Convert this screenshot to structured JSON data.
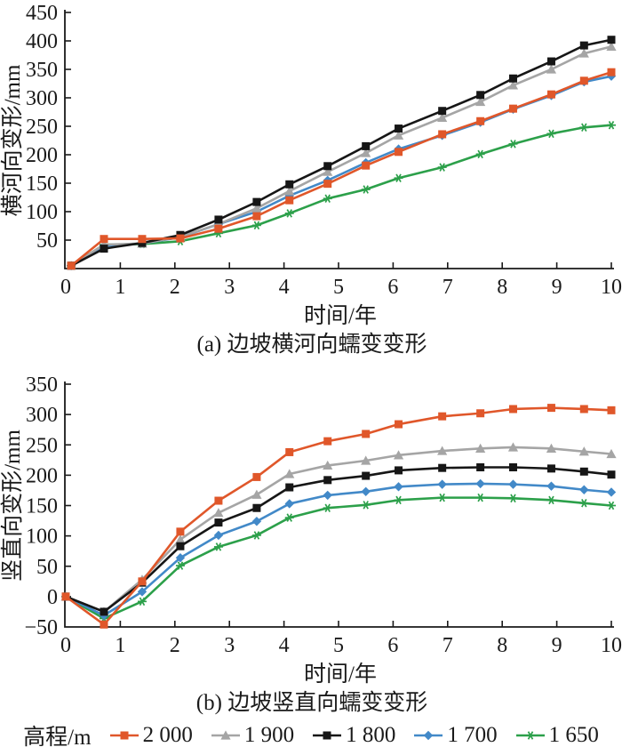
{
  "legend": {
    "title": "高程/m",
    "entries": [
      {
        "label": "2 000",
        "color": "#E0572A",
        "marker": "square"
      },
      {
        "label": "1 900",
        "color": "#A5A5A5",
        "marker": "triangle"
      },
      {
        "label": "1 800",
        "color": "#161616",
        "marker": "square"
      },
      {
        "label": "1 700",
        "color": "#4289C8",
        "marker": "diamond"
      },
      {
        "label": "1 650",
        "color": "#2CA04A",
        "marker": "star"
      }
    ]
  },
  "chart_data": [
    {
      "type": "line",
      "title": "(a) 边坡横河向蠕变变形",
      "xlabel": "时间/年",
      "ylabel": "横河向变形/mm",
      "xlim": [
        0,
        10
      ],
      "ylim": [
        0,
        450
      ],
      "ytick_step": 50,
      "xticks": [
        0,
        1,
        2,
        3,
        4,
        5,
        6,
        7,
        8,
        9,
        10
      ],
      "grid": false,
      "x": [
        0.1,
        0.7,
        1.4,
        2.1,
        2.8,
        3.5,
        4.1,
        4.8,
        5.5,
        6.1,
        6.9,
        7.6,
        8.2,
        8.9,
        9.5,
        10
      ],
      "series": [
        {
          "name": "2 000",
          "color": "#E0572A",
          "marker": "square",
          "values": [
            5,
            52,
            52,
            53,
            70,
            92,
            120,
            149,
            181,
            205,
            236,
            259,
            281,
            306,
            330,
            345
          ]
        },
        {
          "name": "1 900",
          "color": "#A5A5A5",
          "marker": "triangle",
          "values": [
            5,
            42,
            44,
            56,
            78,
            106,
            136,
            170,
            203,
            234,
            265,
            293,
            322,
            350,
            378,
            390
          ]
        },
        {
          "name": "1 800",
          "color": "#161616",
          "marker": "square",
          "values": [
            5,
            35,
            45,
            59,
            86,
            117,
            148,
            180,
            215,
            246,
            277,
            305,
            334,
            364,
            392,
            402
          ]
        },
        {
          "name": "1 700",
          "color": "#4289C8",
          "marker": "diamond",
          "values": [
            5,
            40,
            44,
            55,
            78,
            100,
            128,
            155,
            186,
            210,
            234,
            257,
            280,
            304,
            328,
            338
          ]
        },
        {
          "name": "1 650",
          "color": "#2CA04A",
          "marker": "star",
          "values": [
            5,
            42,
            43,
            48,
            62,
            76,
            97,
            123,
            139,
            159,
            178,
            201,
            219,
            237,
            248,
            252
          ]
        }
      ]
    },
    {
      "type": "line",
      "title": "(b) 边坡竖直向蠕变变形",
      "xlabel": "时间/年",
      "ylabel": "竖直向变形/mm",
      "xlim": [
        0,
        10
      ],
      "ylim": [
        -50,
        350
      ],
      "ytick_step": 50,
      "xticks": [
        0,
        1,
        2,
        3,
        4,
        5,
        6,
        7,
        8,
        9,
        10
      ],
      "grid": false,
      "x": [
        0,
        0.7,
        1.4,
        2.1,
        2.8,
        3.5,
        4.1,
        4.8,
        5.5,
        6.1,
        6.9,
        7.6,
        8.2,
        8.9,
        9.5,
        10
      ],
      "series": [
        {
          "name": "2 000",
          "color": "#E0572A",
          "marker": "square",
          "values": [
            0,
            -46,
            25,
            107,
            158,
            197,
            238,
            256,
            268,
            284,
            297,
            302,
            309,
            311,
            309,
            307
          ]
        },
        {
          "name": "1 900",
          "color": "#A5A5A5",
          "marker": "triangle",
          "values": [
            0,
            -25,
            28,
            94,
            138,
            168,
            202,
            216,
            224,
            233,
            240,
            244,
            246,
            244,
            239,
            235
          ]
        },
        {
          "name": "1 800",
          "color": "#161616",
          "marker": "square",
          "values": [
            0,
            -25,
            23,
            83,
            122,
            146,
            180,
            192,
            199,
            208,
            212,
            213,
            213,
            211,
            206,
            201
          ]
        },
        {
          "name": "1 700",
          "color": "#4289C8",
          "marker": "diamond",
          "values": [
            0,
            -31,
            8,
            64,
            101,
            124,
            153,
            167,
            173,
            181,
            185,
            186,
            185,
            182,
            176,
            172
          ]
        },
        {
          "name": "1 650",
          "color": "#2CA04A",
          "marker": "star",
          "values": [
            0,
            -36,
            -8,
            51,
            82,
            101,
            130,
            146,
            151,
            159,
            163,
            163,
            162,
            159,
            154,
            150
          ]
        }
      ]
    }
  ]
}
